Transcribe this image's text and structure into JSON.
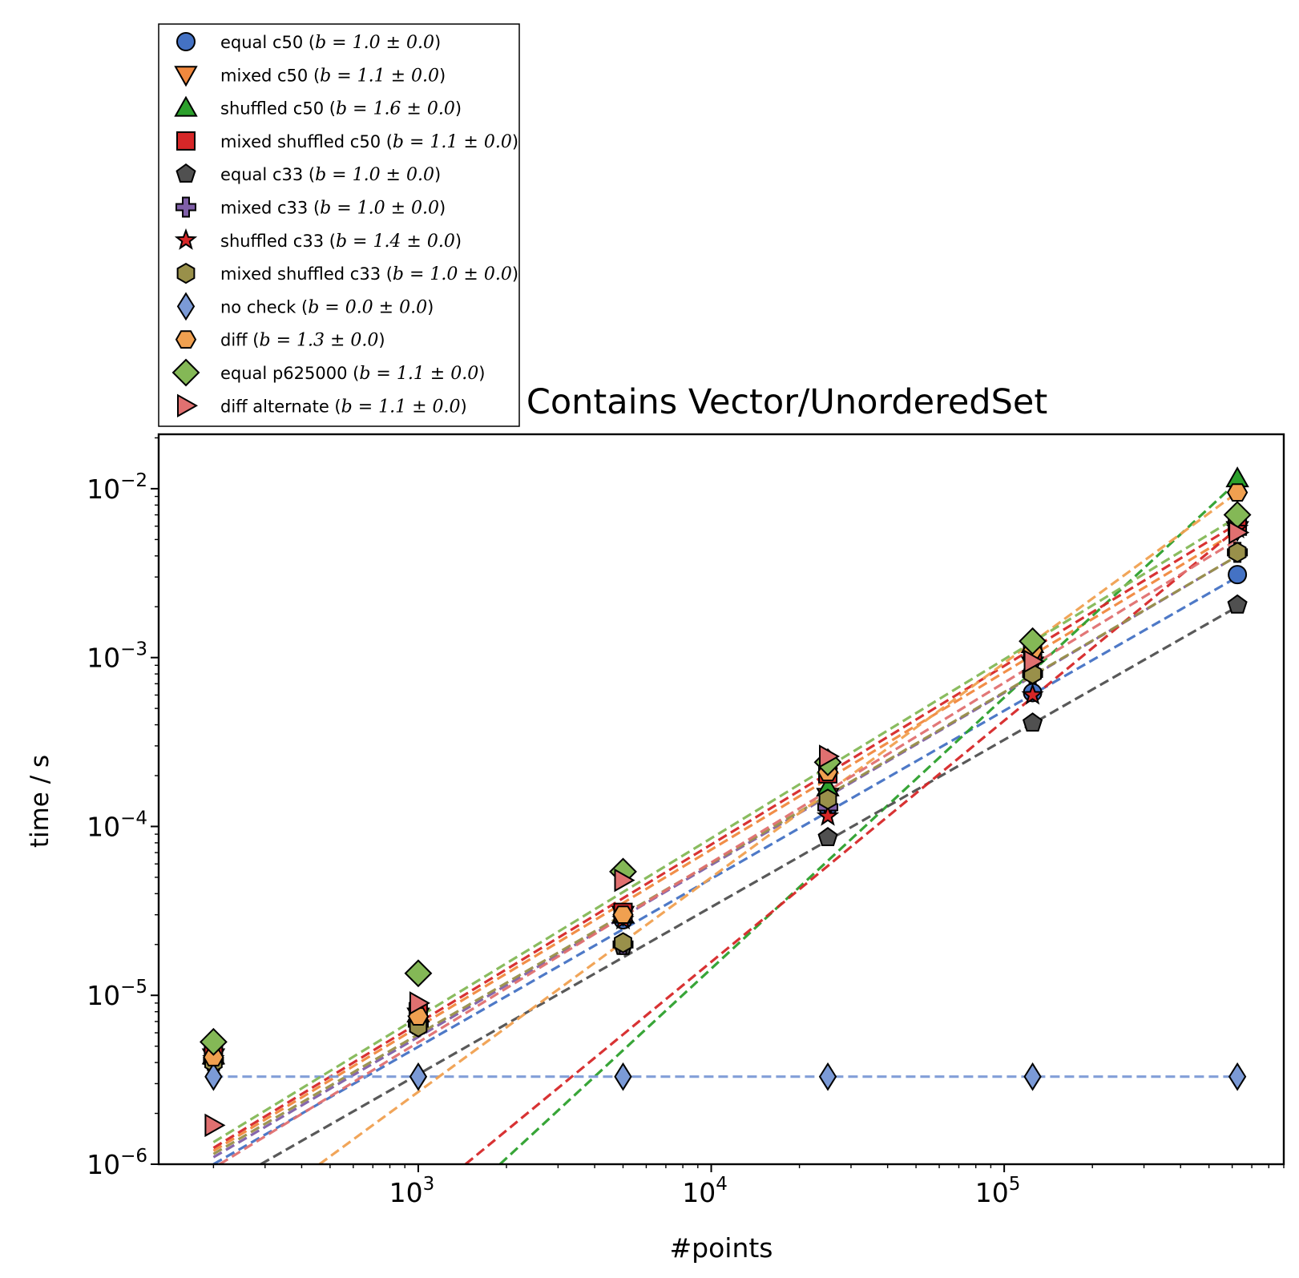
{
  "chart_data": {
    "type": "scatter",
    "title": "Contains Vector/UnorderedSet",
    "xlabel": "#points",
    "ylabel": "time / s",
    "xscale": "log",
    "yscale": "log",
    "xlim": [
      130,
      900000
    ],
    "ylim": [
      1e-06,
      0.021
    ],
    "grid": false,
    "legend_position": "above-left, outside axes",
    "x_ticks": [
      {
        "value": 1000,
        "base": "10",
        "exp": "3"
      },
      {
        "value": 10000,
        "base": "10",
        "exp": "4"
      },
      {
        "value": 100000,
        "base": "10",
        "exp": "5"
      }
    ],
    "y_ticks": [
      {
        "value": 1e-06,
        "base": "10",
        "exp": "−6"
      },
      {
        "value": 1e-05,
        "base": "10",
        "exp": "−5"
      },
      {
        "value": 0.0001,
        "base": "10",
        "exp": "−4"
      },
      {
        "value": 0.001,
        "base": "10",
        "exp": "−3"
      },
      {
        "value": 0.01,
        "base": "10",
        "exp": "−2"
      }
    ],
    "x": [
      200,
      1000,
      5000,
      25000,
      125000,
      625000
    ],
    "series": [
      {
        "name": "equal c50",
        "fit": "b = 1.0 ± 0.0",
        "b": 1.0,
        "marker": "circle",
        "color": "#4472c4",
        "values": [
          4.2e-06,
          7e-06,
          2.8e-05,
          0.00013,
          0.00062,
          0.0031
        ],
        "fit_line": [
          [
            200,
            1e-06
          ],
          [
            625000,
            0.003
          ]
        ]
      },
      {
        "name": "mixed c50",
        "fit": "b = 1.1 ± 0.0",
        "b": 1.1,
        "marker": "triangle-down",
        "color": "#f0883e",
        "values": [
          4.3e-06,
          7.5e-06,
          3e-05,
          0.00015,
          0.0009,
          0.0057
        ],
        "fit_line": [
          [
            200,
            1.2e-06
          ],
          [
            625000,
            0.0056
          ]
        ]
      },
      {
        "name": "shuffled c50",
        "fit": "b = 1.6 ± 0.0",
        "b": 1.6,
        "marker": "triangle-up",
        "color": "#2ca02c",
        "values": [
          4.4e-06,
          7.8e-06,
          3e-05,
          0.00017,
          0.0012,
          0.0115
        ],
        "fit_line": [
          [
            1900,
            1e-06
          ],
          [
            625000,
            0.011
          ]
        ]
      },
      {
        "name": "mixed shuffled c50",
        "fit": "b = 1.1 ± 0.0",
        "b": 1.1,
        "marker": "square",
        "color": "#d62728",
        "values": [
          4.5e-06,
          8e-06,
          3.1e-05,
          0.000205,
          0.0011,
          0.006
        ],
        "fit_line": [
          [
            200,
            1.25e-06
          ],
          [
            625000,
            0.0062
          ]
        ]
      },
      {
        "name": "equal c33",
        "fit": "b = 1.0 ± 0.0",
        "b": 1.0,
        "marker": "pentagon",
        "color": "#505050",
        "values": [
          4e-06,
          6.6e-06,
          1.95e-05,
          8.6e-05,
          0.00041,
          0.00205
        ],
        "fit_line": [
          [
            290,
            1e-06
          ],
          [
            625000,
            0.002
          ]
        ]
      },
      {
        "name": "mixed c33",
        "fit": "b = 1.0 ± 0.0",
        "b": 1.0,
        "marker": "plus",
        "color": "#7f5fa8",
        "values": [
          4.1e-06,
          6.8e-06,
          2e-05,
          0.00013,
          0.0008,
          0.0042
        ],
        "fit_line": [
          [
            200,
            1.1e-06
          ],
          [
            625000,
            0.004
          ]
        ]
      },
      {
        "name": "shuffled c33",
        "fit": "b = 1.4 ± 0.0",
        "b": 1.4,
        "marker": "star",
        "color": "#d62728",
        "values": [
          4.2e-06,
          7.2e-06,
          2.8e-05,
          0.000115,
          0.0006,
          0.0058
        ],
        "fit_line": [
          [
            1450,
            1e-06
          ],
          [
            625000,
            0.0058
          ]
        ]
      },
      {
        "name": "mixed shuffled c33",
        "fit": "b = 1.0 ± 0.0",
        "b": 1.0,
        "marker": "hexagon",
        "color": "#99904a",
        "values": [
          4e-06,
          6.5e-06,
          2.05e-05,
          0.000145,
          0.0008,
          0.0042
        ],
        "fit_line": [
          [
            200,
            1.15e-06
          ],
          [
            625000,
            0.004
          ]
        ]
      },
      {
        "name": "no check",
        "fit": "b = 0.0 ± 0.0",
        "b": 0.0,
        "marker": "thin-diamond",
        "color": "#7b9ad6",
        "values": [
          3.3e-06,
          3.3e-06,
          3.3e-06,
          3.3e-06,
          3.3e-06,
          3.3e-06
        ],
        "fit_line": [
          [
            200,
            3.3e-06
          ],
          [
            625000,
            3.3e-06
          ]
        ]
      },
      {
        "name": "diff",
        "fit": "b = 1.3 ± 0.0",
        "b": 1.3,
        "marker": "hexagon2",
        "color": "#f0a050",
        "values": [
          4.3e-06,
          7.5e-06,
          3e-05,
          0.00021,
          0.0011,
          0.0095
        ],
        "fit_line": [
          [
            460,
            1e-06
          ],
          [
            625000,
            0.0095
          ]
        ]
      },
      {
        "name": "equal p625000",
        "fit": "b = 1.1 ± 0.0",
        "b": 1.1,
        "marker": "diamond",
        "color": "#84b856",
        "values": [
          5.3e-06,
          1.35e-05,
          5.4e-05,
          0.00024,
          0.00125,
          0.007
        ],
        "fit_line": [
          [
            200,
            1.35e-06
          ],
          [
            625000,
            0.0068
          ]
        ]
      },
      {
        "name": "diff alternate",
        "fit": "b = 1.1 ± 0.0",
        "b": 1.1,
        "marker": "triangle-right",
        "color": "#e07070",
        "values": [
          1.7e-06,
          9e-06,
          4.8e-05,
          0.00026,
          0.00095,
          0.0055
        ],
        "fit_line": [
          [
            210,
            1e-06
          ],
          [
            625000,
            0.005
          ]
        ]
      }
    ]
  }
}
